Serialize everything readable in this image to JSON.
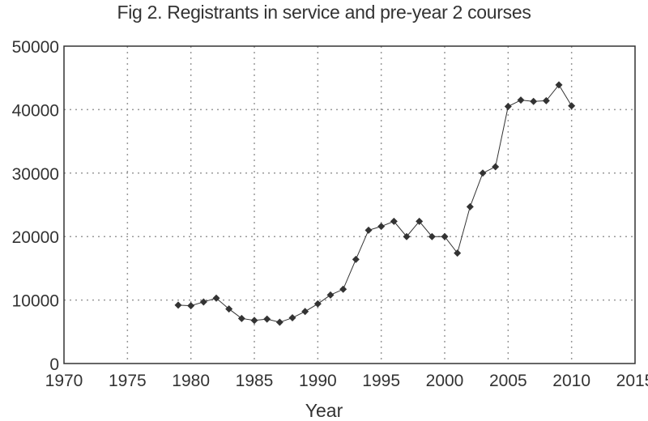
{
  "chart_data": {
    "type": "line",
    "title": "Fig 2. Registrants in service and pre-year 2 courses",
    "xlabel": "Year",
    "ylabel": "",
    "xlim": [
      1970,
      2015
    ],
    "ylim": [
      0,
      50000
    ],
    "xticks": [
      1970,
      1975,
      1980,
      1985,
      1990,
      1995,
      2000,
      2005,
      2010,
      2015
    ],
    "yticks": [
      0,
      10000,
      20000,
      30000,
      40000,
      50000
    ],
    "grid": true,
    "legend": "none",
    "series": [
      {
        "name": "Registrants",
        "marker": "diamond",
        "color": "#333333",
        "x": [
          1979,
          1980,
          1981,
          1982,
          1983,
          1984,
          1985,
          1986,
          1987,
          1988,
          1989,
          1990,
          1991,
          1992,
          1993,
          1994,
          1995,
          1996,
          1997,
          1998,
          1999,
          2000,
          2001,
          2002,
          2003,
          2004,
          2005,
          2006,
          2007,
          2008,
          2009,
          2010
        ],
        "y": [
          9200,
          9100,
          9700,
          10300,
          8600,
          7100,
          6800,
          7000,
          6500,
          7200,
          8200,
          9400,
          10800,
          11700,
          16400,
          21000,
          21600,
          22400,
          20000,
          22400,
          20000,
          20000,
          17400,
          24700,
          30000,
          31000,
          40500,
          41500,
          41300,
          41400,
          43900,
          40600
        ]
      }
    ]
  }
}
